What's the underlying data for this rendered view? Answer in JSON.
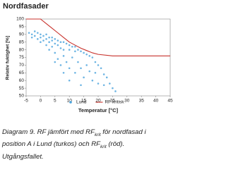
{
  "chart_data": {
    "type": "scatter",
    "title": "Nordfasader",
    "x_label": "Temperatur [°C]",
    "y_label": "Relativ fuktighet [%]",
    "xlim": [
      -5,
      45
    ],
    "xticks": [
      -5,
      0,
      5,
      10,
      15,
      20,
      25,
      30,
      35,
      40,
      45
    ],
    "ylim": [
      50,
      100
    ],
    "yticks": [
      50,
      55,
      60,
      65,
      70,
      75,
      80,
      85,
      90,
      95,
      100
    ],
    "grid": false,
    "legend": "bottom",
    "series": [
      {
        "name": "Lund",
        "type": "scatter",
        "color": "#4aa3dc",
        "x": [
          -4,
          -3,
          -3,
          -2,
          -2,
          -1,
          -1,
          0,
          0,
          0,
          1,
          1,
          2,
          2,
          2,
          3,
          3,
          3,
          4,
          4,
          4,
          5,
          5,
          5,
          6,
          6,
          6,
          7,
          7,
          7,
          8,
          8,
          8,
          9,
          9,
          10,
          10,
          10,
          11,
          11,
          12,
          12,
          12,
          13,
          13,
          14,
          14,
          15,
          15,
          16,
          16,
          17,
          17,
          18,
          18,
          19,
          19,
          20,
          20,
          21,
          22,
          22,
          23,
          24,
          25,
          26,
          10,
          14,
          8,
          5
        ],
        "values": [
          91,
          90,
          88,
          92,
          89,
          91,
          87,
          90,
          88,
          85,
          89,
          86,
          90,
          87,
          83,
          88,
          85,
          80,
          88,
          86,
          82,
          87,
          84,
          78,
          86,
          83,
          74,
          85,
          81,
          70,
          85,
          80,
          76,
          84,
          72,
          83,
          80,
          68,
          82,
          75,
          82,
          79,
          65,
          80,
          72,
          79,
          68,
          78,
          62,
          77,
          70,
          76,
          66,
          75,
          60,
          72,
          65,
          70,
          58,
          68,
          64,
          57,
          62,
          58,
          55,
          53,
          60,
          57,
          65,
          72
        ]
      },
      {
        "name": "RF kritisk",
        "type": "line",
        "color": "#c8312b",
        "x": [
          -5,
          0,
          2,
          4,
          6,
          8,
          10,
          12,
          14,
          16,
          18,
          20,
          25,
          30,
          35,
          40,
          45
        ],
        "values": [
          100,
          100,
          97,
          94,
          91,
          88,
          85,
          83,
          81,
          79.5,
          78,
          77,
          76,
          76,
          76,
          76,
          76
        ]
      }
    ]
  },
  "caption": [
    [
      {
        "text": "Diagram 9. RF jämfört med RF"
      },
      {
        "text": "krit",
        "subscript": true
      },
      {
        "text": " för nordfasad i"
      }
    ],
    [
      {
        "text": "position A i Lund (turkos) och RF"
      },
      {
        "text": "krit",
        "subscript": true
      },
      {
        "text": " (röd)."
      }
    ],
    [
      {
        "text": "Utgångsfallet."
      }
    ]
  ]
}
